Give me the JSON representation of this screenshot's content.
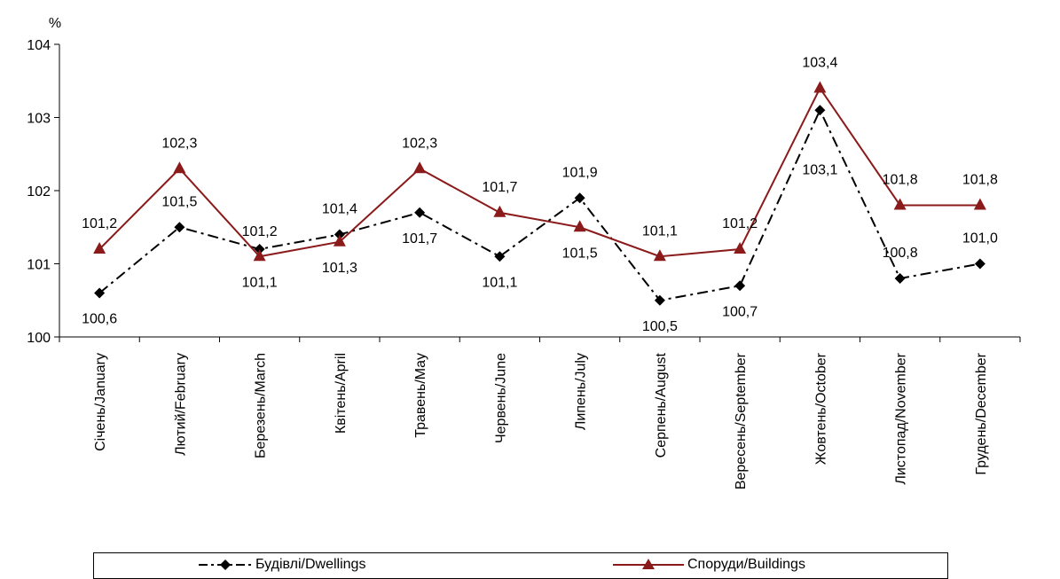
{
  "chart_data": {
    "type": "line",
    "ylabel": "%",
    "ylim": [
      100,
      104
    ],
    "yticks": [
      "100",
      "101",
      "102",
      "103",
      "104"
    ],
    "categories": [
      "Січень/January",
      "Лютий/February",
      "Березень/March",
      "Квітень/April",
      "Травень/May",
      "Червень/June",
      "Липень/July",
      "Серпень/August",
      "Вересень/September",
      "Жовтень/October",
      "Листопад/November",
      "Грудень/December"
    ],
    "series": [
      {
        "name": "Будівлі/Dwellings",
        "color": "#000000",
        "marker": "diamond",
        "line_style": "dash-dot",
        "values": [
          100.6,
          101.5,
          101.2,
          101.4,
          101.7,
          101.1,
          101.9,
          100.5,
          100.7,
          103.1,
          100.8,
          101.0
        ],
        "labels": [
          "100,6",
          "101,5",
          "101,2",
          "101,4",
          "101,7",
          "101,1",
          "101,9",
          "100,5",
          "100,7",
          "103,1",
          "100,8",
          "101,0"
        ]
      },
      {
        "name": "Споруди/Buildings",
        "color": "#8b1a1a",
        "marker": "triangle",
        "line_style": "solid",
        "values": [
          101.2,
          102.3,
          101.1,
          101.3,
          102.3,
          101.7,
          101.5,
          101.1,
          101.2,
          103.4,
          101.8,
          101.8
        ],
        "labels": [
          "101,2",
          "102,3",
          "101,1",
          "101,3",
          "102,3",
          "101,7",
          "101,5",
          "101,1",
          "101,2",
          "103,4",
          "101,8",
          "101,8"
        ]
      }
    ],
    "legend_position": "bottom",
    "grid": false
  }
}
